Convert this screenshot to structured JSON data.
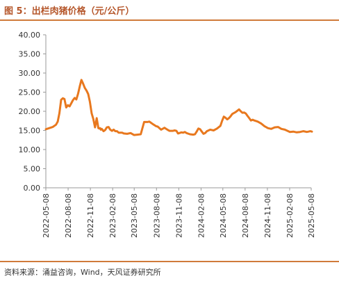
{
  "header": {
    "title": "图 5：出栏肉猪价格（元/公斤）"
  },
  "footer": {
    "source": "资料来源：涌益咨询，Wind，天风证券研究所"
  },
  "chart_data": {
    "type": "line",
    "title": "图 5：出栏肉猪价格（元/公斤）",
    "xlabel": "",
    "ylabel": "",
    "ylim": [
      0,
      40
    ],
    "y_ticks": [
      "0.00",
      "5.00",
      "10.00",
      "15.00",
      "20.00",
      "25.00",
      "30.00",
      "35.00",
      "40.00"
    ],
    "x_ticks": [
      "2022-05-08",
      "2022-08-08",
      "2022-11-08",
      "2023-02-08",
      "2023-05-08",
      "2023-08-08",
      "2023-11-08",
      "2024-02-08",
      "2024-05-08",
      "2024-08-08",
      "2024-11-08",
      "2025-02-08",
      "2025-05-08"
    ],
    "grid": false,
    "legend": "none",
    "colors": {
      "line": "#e8781e",
      "axis": "#999999",
      "rule": "#d07a3a",
      "title": "#b5562a"
    },
    "series": [
      {
        "x": [
          "2022-05-08",
          "2022-05-22",
          "2022-06-05",
          "2022-06-19",
          "2022-06-26",
          "2022-07-03",
          "2022-07-10",
          "2022-07-17",
          "2022-07-24",
          "2022-07-31",
          "2022-08-07",
          "2022-08-14",
          "2022-08-21",
          "2022-08-28",
          "2022-09-04",
          "2022-09-11",
          "2022-09-18",
          "2022-09-25",
          "2022-10-02",
          "2022-10-09",
          "2022-10-16",
          "2022-10-23",
          "2022-10-30",
          "2022-11-06",
          "2022-11-13",
          "2022-11-20",
          "2022-11-27",
          "2022-12-04",
          "2022-12-11",
          "2022-12-15",
          "2022-12-18",
          "2022-12-21",
          "2022-12-25",
          "2023-01-01",
          "2023-01-08",
          "2023-01-15",
          "2023-01-22",
          "2023-01-29",
          "2023-02-05",
          "2023-02-12",
          "2023-02-19",
          "2023-02-26",
          "2023-03-05",
          "2023-03-12",
          "2023-03-19",
          "2023-03-26",
          "2023-04-09",
          "2023-04-23",
          "2023-05-07",
          "2023-05-21",
          "2023-06-04",
          "2023-06-18",
          "2023-07-02",
          "2023-07-09",
          "2023-07-16",
          "2023-07-23",
          "2023-07-30",
          "2023-08-06",
          "2023-08-13",
          "2023-08-20",
          "2023-08-27",
          "2023-09-10",
          "2023-09-24",
          "2023-10-01",
          "2023-10-08",
          "2023-10-15",
          "2023-10-22",
          "2023-10-29",
          "2023-11-05",
          "2023-11-19",
          "2023-11-26",
          "2023-12-03",
          "2023-12-10",
          "2023-12-24",
          "2024-01-07",
          "2024-01-14",
          "2024-01-21",
          "2024-01-28",
          "2024-02-04",
          "2024-02-11",
          "2024-02-18",
          "2024-02-25",
          "2024-03-03",
          "2024-03-17",
          "2024-03-31",
          "2024-04-14",
          "2024-04-28",
          "2024-05-05",
          "2024-05-12",
          "2024-05-19",
          "2024-05-26",
          "2024-06-02",
          "2024-06-09",
          "2024-06-16",
          "2024-06-30",
          "2024-07-14",
          "2024-07-21",
          "2024-07-28",
          "2024-08-04",
          "2024-08-11",
          "2024-08-18",
          "2024-08-25",
          "2024-09-01",
          "2024-09-08",
          "2024-09-15",
          "2024-09-29",
          "2024-10-13",
          "2024-10-27",
          "2024-11-10",
          "2024-11-24",
          "2024-12-08",
          "2024-12-22",
          "2025-01-05",
          "2025-01-19",
          "2025-02-02",
          "2025-02-09",
          "2025-02-23",
          "2025-03-09",
          "2025-03-23",
          "2025-04-06",
          "2025-04-20",
          "2025-04-27",
          "2025-05-04",
          "2025-05-11"
        ],
        "values": [
          15.3,
          15.6,
          15.9,
          16.5,
          17.3,
          19.5,
          23.0,
          23.4,
          23.2,
          21.0,
          21.6,
          21.3,
          22.1,
          22.9,
          23.5,
          23.1,
          24.6,
          26.5,
          28.2,
          27.2,
          26.1,
          25.4,
          24.5,
          22.5,
          19.5,
          18.0,
          15.8,
          18.2,
          15.6,
          15.5,
          15.6,
          15.2,
          15.4,
          14.8,
          15.1,
          15.8,
          15.9,
          15.2,
          14.9,
          15.2,
          14.8,
          14.8,
          14.4,
          14.4,
          14.4,
          14.2,
          14.1,
          14.3,
          13.8,
          13.9,
          14.0,
          17.2,
          17.2,
          17.3,
          17.0,
          16.7,
          16.4,
          16.1,
          16.0,
          15.6,
          15.2,
          15.7,
          15.1,
          14.9,
          14.9,
          14.9,
          15.0,
          14.9,
          14.2,
          14.5,
          14.4,
          14.6,
          14.3,
          14.0,
          13.9,
          14.0,
          14.7,
          15.5,
          15.3,
          14.7,
          14.1,
          14.3,
          14.8,
          15.2,
          15.0,
          15.5,
          16.2,
          17.5,
          18.6,
          18.3,
          17.9,
          18.2,
          18.7,
          19.3,
          19.8,
          20.5,
          20.0,
          19.6,
          19.7,
          19.4,
          18.8,
          18.2,
          17.6,
          17.8,
          17.6,
          17.3,
          16.8,
          16.1,
          15.6,
          15.4,
          15.8,
          15.9,
          15.4,
          15.2,
          14.8,
          14.6,
          14.7,
          14.5,
          14.6,
          14.8,
          14.6,
          14.7,
          14.8,
          14.7
        ]
      }
    ]
  }
}
